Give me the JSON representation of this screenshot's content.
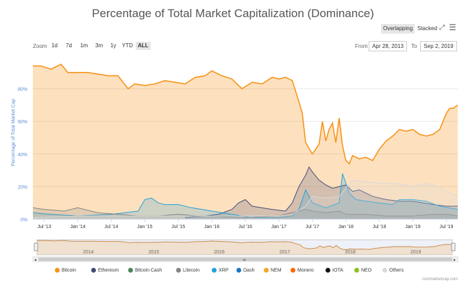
{
  "toolbar": {
    "modes": [
      "Overlapping",
      "Stacked"
    ],
    "active_mode": "Overlapping",
    "zoom_label": "Zoom",
    "zoom_options": [
      "1d",
      "7d",
      "1m",
      "3m",
      "1y",
      "YTD",
      "ALL"
    ],
    "active_zoom": "ALL",
    "from_label": "From",
    "from_value": "Apr 28, 2013",
    "to_label": "To",
    "to_value": "Sep 2, 2019",
    "fullscreen_icon": "expand-icon",
    "menu_icon": "hamburger-menu-icon"
  },
  "credit": "coinmarketcap.com",
  "colors": {
    "Bitcoin": "#f7931a",
    "Ethereum": "#454a75",
    "Bitcoin Cash": "#478558",
    "Litecoin": "#838383",
    "XRP": "#23a0d8",
    "Dash": "#1c75bc",
    "NEM": "#f5a623",
    "Monero": "#ff6600",
    "IOTA": "#111111",
    "NEO": "#8bc11f",
    "Others": "#d9d9d9"
  },
  "chart_data": {
    "type": "area",
    "title": "Percentage of Total Market Capitalization (Dominance)",
    "ylabel": "Percentage of Total Market Cap",
    "xlabel": "",
    "xlim": [
      2013.33,
      2019.67
    ],
    "ylim": [
      0,
      100
    ],
    "y_ticks": [
      0,
      20,
      40,
      60,
      80
    ],
    "y_tick_labels": [
      "0%",
      "20%",
      "40%",
      "60%",
      "80%"
    ],
    "x_ticks": [
      2013.5,
      2014.0,
      2014.5,
      2015.0,
      2015.5,
      2016.0,
      2016.5,
      2017.0,
      2017.5,
      2018.0,
      2018.5,
      2019.0,
      2019.5
    ],
    "x_tick_labels": [
      "Jul '13",
      "Jan '14",
      "Jul '14",
      "Jan '15",
      "Jul '15",
      "Jan '16",
      "Jul '16",
      "Jan '17",
      "Jul '17",
      "Jan '18",
      "Jul '18",
      "Jan '19",
      "Jul '19"
    ],
    "navigator_labels": [
      "2014",
      "2015",
      "2016",
      "2017",
      "2018",
      "2019"
    ],
    "navigator_label_x": [
      2014.0,
      2015.0,
      2016.0,
      2017.0,
      2018.0,
      2019.0
    ],
    "legend_position": "bottom",
    "grid": true,
    "series": [
      {
        "name": "Bitcoin",
        "x": [
          2013.33,
          2013.45,
          2013.6,
          2013.75,
          2013.85,
          2014.0,
          2014.15,
          2014.3,
          2014.45,
          2014.6,
          2014.75,
          2014.85,
          2015.0,
          2015.15,
          2015.3,
          2015.45,
          2015.6,
          2015.75,
          2015.9,
          2016.0,
          2016.15,
          2016.3,
          2016.45,
          2016.6,
          2016.75,
          2016.9,
          2017.0,
          2017.1,
          2017.15,
          2017.2,
          2017.3,
          2017.35,
          2017.4,
          2017.5,
          2017.6,
          2017.65,
          2017.7,
          2017.75,
          2017.8,
          2017.85,
          2017.9,
          2017.95,
          2018.0,
          2018.05,
          2018.1,
          2018.2,
          2018.3,
          2018.4,
          2018.5,
          2018.6,
          2018.7,
          2018.8,
          2018.9,
          2019.0,
          2019.1,
          2019.2,
          2019.3,
          2019.4,
          2019.5,
          2019.55,
          2019.6,
          2019.67
        ],
        "values": [
          94,
          94,
          92,
          95,
          90,
          90,
          90,
          89,
          88,
          88,
          80,
          83,
          82,
          83,
          85,
          84,
          83,
          87,
          88,
          91,
          88,
          86,
          80,
          84,
          83,
          87,
          86,
          87,
          86,
          85,
          72,
          65,
          47,
          40,
          46,
          60,
          48,
          55,
          59,
          47,
          62,
          45,
          36,
          34,
          39,
          37,
          38,
          36,
          43,
          48,
          51,
          55,
          54,
          55,
          52,
          51,
          52,
          55,
          65,
          68,
          68,
          70
        ]
      },
      {
        "name": "Ethereum",
        "x": [
          2015.6,
          2015.9,
          2016.1,
          2016.3,
          2016.4,
          2016.5,
          2016.6,
          2016.9,
          2017.1,
          2017.2,
          2017.3,
          2017.4,
          2017.45,
          2017.5,
          2017.6,
          2017.7,
          2017.8,
          2017.9,
          2018.0,
          2018.1,
          2018.2,
          2018.4,
          2018.6,
          2018.8,
          2019.0,
          2019.3,
          2019.5,
          2019.67
        ],
        "values": [
          1,
          2,
          3,
          6,
          10,
          12,
          8,
          6,
          5,
          10,
          20,
          27,
          32,
          29,
          24,
          21,
          19,
          20,
          21,
          17,
          18,
          14,
          12,
          11,
          11,
          9,
          8,
          8
        ]
      },
      {
        "name": "XRP",
        "x": [
          2013.33,
          2013.6,
          2014.0,
          2014.5,
          2014.9,
          2015.0,
          2015.1,
          2015.2,
          2015.3,
          2015.5,
          2015.7,
          2016.0,
          2016.3,
          2016.6,
          2017.0,
          2017.2,
          2017.3,
          2017.4,
          2017.5,
          2017.7,
          2017.9,
          2017.95,
          2018.0,
          2018.05,
          2018.15,
          2018.3,
          2018.5,
          2018.7,
          2018.8,
          2019.0,
          2019.2,
          2019.4,
          2019.67
        ],
        "values": [
          4,
          3,
          2,
          3,
          5,
          12,
          13,
          10,
          9,
          9,
          7,
          5,
          3,
          1,
          1,
          2,
          6,
          18,
          10,
          7,
          10,
          28,
          22,
          16,
          12,
          11,
          10,
          9,
          12,
          12,
          11,
          8,
          6
        ]
      },
      {
        "name": "Litecoin",
        "x": [
          2013.33,
          2013.5,
          2013.8,
          2014.0,
          2014.3,
          2014.6,
          2014.9,
          2015.2,
          2015.5,
          2015.8,
          2016.0,
          2016.5,
          2017.0,
          2017.3,
          2017.4,
          2017.5,
          2017.7,
          2017.9,
          2018.0,
          2018.3,
          2018.6,
          2019.0,
          2019.3,
          2019.5,
          2019.67
        ],
        "values": [
          7,
          6,
          5,
          7,
          4,
          3,
          2,
          2,
          3,
          2,
          2,
          1,
          2,
          5,
          6,
          5,
          4,
          5,
          3,
          3,
          2,
          2,
          3,
          3,
          2
        ]
      },
      {
        "name": "Others",
        "x": [
          2013.33,
          2014.0,
          2014.5,
          2015.0,
          2015.5,
          2016.0,
          2016.5,
          2017.0,
          2017.2,
          2017.4,
          2017.5,
          2017.7,
          2017.9,
          2018.0,
          2018.1,
          2018.3,
          2018.5,
          2018.7,
          2018.9,
          2019.0,
          2019.2,
          2019.4,
          2019.5,
          2019.67
        ],
        "values": [
          1,
          2,
          2,
          2,
          2,
          2,
          2,
          2,
          3,
          8,
          14,
          13,
          14,
          19,
          24,
          23,
          22,
          22,
          21,
          20,
          22,
          20,
          17,
          14
        ]
      }
    ],
    "legend_series": [
      "Bitcoin",
      "Ethereum",
      "Bitcoin Cash",
      "Litecoin",
      "XRP",
      "Dash",
      "NEM",
      "Monero",
      "IOTA",
      "NEO",
      "Others"
    ],
    "navigator_series": "Bitcoin"
  }
}
